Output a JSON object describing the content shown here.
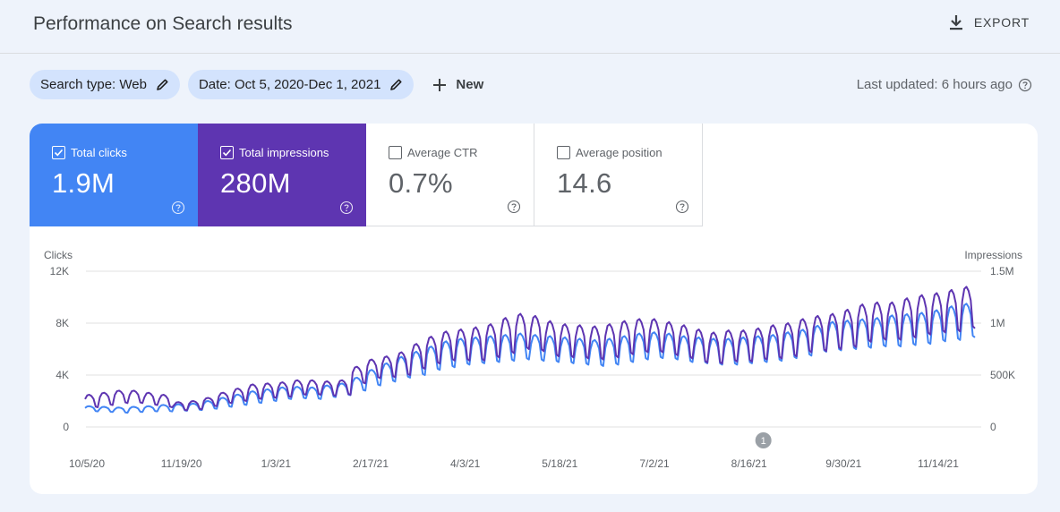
{
  "header": {
    "title": "Performance on Search results",
    "export_label": "EXPORT"
  },
  "filters": {
    "search_type": "Search type: Web",
    "date": "Date: Oct 5, 2020-Dec 1, 2021",
    "new_label": "New"
  },
  "last_updated": "Last updated: 6 hours ago",
  "metrics": [
    {
      "label": "Total clicks",
      "value": "1.9M",
      "checked": true
    },
    {
      "label": "Total impressions",
      "value": "280M",
      "checked": true
    },
    {
      "label": "Average CTR",
      "value": "0.7%",
      "checked": false
    },
    {
      "label": "Average position",
      "value": "14.6",
      "checked": false
    }
  ],
  "colors": {
    "clicks": "#4285f4",
    "impressions": "#5e35b1",
    "accent_chip": "#d3e3fd"
  },
  "chart_data": {
    "type": "line",
    "left_axis_label": "Clicks",
    "right_axis_label": "Impressions",
    "left_ticks": [
      "12K",
      "8K",
      "4K",
      "0"
    ],
    "right_ticks": [
      "1.5M",
      "1M",
      "500K",
      "0"
    ],
    "ylim_left": [
      0,
      12000
    ],
    "ylim_right": [
      0,
      1500000
    ],
    "x_ticks": [
      "10/5/20",
      "11/19/20",
      "1/3/21",
      "2/17/21",
      "4/3/21",
      "5/18/21",
      "7/2/21",
      "8/16/21",
      "9/30/21",
      "11/14/21"
    ],
    "annotation": {
      "label": "1",
      "date": "8/16/21"
    },
    "series": [
      {
        "name": "Clicks",
        "axis": "left",
        "color": "#4285f4",
        "weekly_trend": [
          1400,
          1350,
          1300,
          1350,
          1400,
          1450,
          1500,
          1550,
          1700,
          1900,
          2100,
          2300,
          2450,
          2600,
          2650,
          2600,
          2750,
          2900,
          3300,
          3800,
          4200,
          4600,
          4900,
          5300,
          5600,
          5800,
          5900,
          6000,
          6100,
          6200,
          6100,
          6000,
          5900,
          5800,
          5700,
          5800,
          6000,
          6200,
          6300,
          6200,
          6000,
          5900,
          5800,
          5800,
          5900,
          6000,
          6100,
          6300,
          6500,
          6800,
          7000,
          7100,
          7200,
          7300,
          7400,
          7500,
          7600,
          7800,
          8000,
          8200
        ],
        "weekly_amplitude": [
          200,
          200,
          200,
          200,
          200,
          250,
          250,
          250,
          300,
          350,
          400,
          450,
          450,
          450,
          450,
          450,
          450,
          450,
          500,
          600,
          700,
          800,
          900,
          900,
          1000,
          1000,
          1000,
          1000,
          1000,
          1000,
          1000,
          1000,
          1000,
          1000,
          1000,
          1000,
          1000,
          1000,
          1000,
          1000,
          1000,
          1000,
          1000,
          1000,
          1000,
          1000,
          1000,
          1000,
          1000,
          1000,
          1100,
          1100,
          1100,
          1100,
          1200,
          1200,
          1200,
          1200,
          1300,
          1300
        ]
      },
      {
        "name": "Impressions",
        "axis": "right",
        "color": "#5e35b1",
        "weekly_trend": [
          250000,
          270000,
          290000,
          290000,
          270000,
          250000,
          200000,
          210000,
          240000,
          280000,
          310000,
          340000,
          350000,
          360000,
          380000,
          380000,
          370000,
          380000,
          500000,
          560000,
          580000,
          610000,
          680000,
          740000,
          780000,
          790000,
          800000,
          830000,
          880000,
          920000,
          900000,
          850000,
          830000,
          820000,
          810000,
          830000,
          860000,
          880000,
          880000,
          850000,
          820000,
          780000,
          760000,
          780000,
          780000,
          800000,
          820000,
          840000,
          880000,
          900000,
          920000,
          950000,
          1000000,
          1020000,
          1020000,
          1050000,
          1080000,
          1100000,
          1120000,
          1150000
        ],
        "weekly_amplitude": [
          60000,
          60000,
          60000,
          60000,
          60000,
          60000,
          40000,
          40000,
          40000,
          50000,
          60000,
          70000,
          70000,
          70000,
          70000,
          70000,
          70000,
          70000,
          80000,
          90000,
          100000,
          110000,
          120000,
          130000,
          140000,
          150000,
          160000,
          160000,
          170000,
          170000,
          170000,
          170000,
          160000,
          160000,
          160000,
          160000,
          160000,
          160000,
          160000,
          160000,
          160000,
          160000,
          150000,
          150000,
          150000,
          150000,
          160000,
          160000,
          160000,
          170000,
          170000,
          180000,
          180000,
          180000,
          180000,
          190000,
          190000,
          190000,
          200000,
          200000
        ]
      }
    ]
  }
}
